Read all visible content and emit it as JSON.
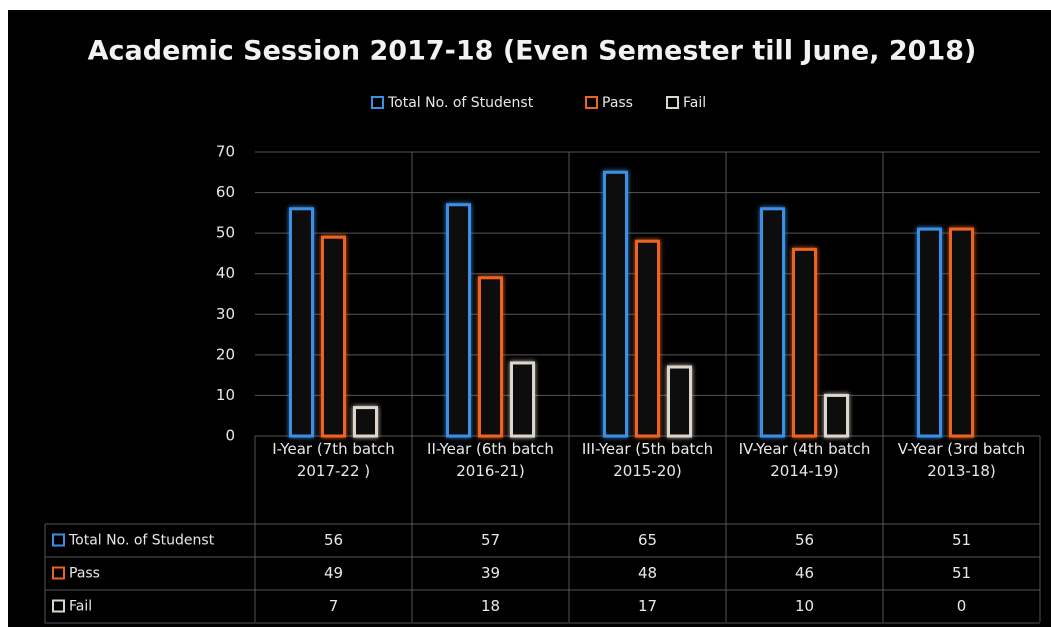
{
  "chart_data": {
    "type": "bar",
    "title": "Academic Session 2017-18 (Even Semester till June, 2018)",
    "categories": [
      "I-Year (7th batch 2017-22 )",
      "II-Year (6th batch 2016-21)",
      "III-Year (5th batch 2015-20)",
      "IV-Year (4th batch 2014-19)",
      "V-Year (3rd batch 2013-18)"
    ],
    "series": [
      {
        "name": "Total No. of Studenst",
        "color": "#3d8fe6",
        "values": [
          56,
          57,
          65,
          56,
          51
        ]
      },
      {
        "name": "Pass",
        "color": "#ec6420",
        "values": [
          49,
          39,
          48,
          46,
          51
        ]
      },
      {
        "name": "Fail",
        "color": "#ddd6cc",
        "values": [
          7,
          18,
          17,
          10,
          0
        ]
      }
    ],
    "ylim": [
      0,
      70
    ],
    "yticks": [
      0,
      10,
      20,
      30,
      40,
      50,
      60,
      70
    ],
    "grid": true,
    "legend": "top"
  }
}
